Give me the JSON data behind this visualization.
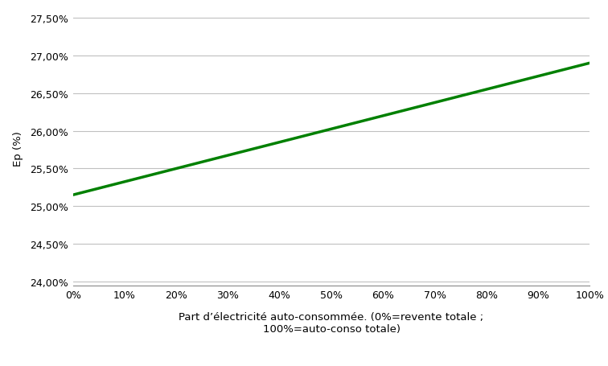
{
  "x_values": [
    0.0,
    1.0
  ],
  "y_values": [
    0.2515,
    0.269
  ],
  "line_color": "#008000",
  "line_width": 2.5,
  "ylabel": "Ep (%)",
  "xlabel": "Part d’électricité auto-consommée. (0%=revente totale ;\n100%=auto-conso totale)",
  "xlim": [
    0.0,
    1.0
  ],
  "ylim": [
    0.2395,
    0.276
  ],
  "ytick_values": [
    0.24,
    0.245,
    0.25,
    0.255,
    0.26,
    0.265,
    0.27,
    0.275
  ],
  "xtick_values": [
    0,
    0.1,
    0.2,
    0.3,
    0.4,
    0.5,
    0.6,
    0.7,
    0.8,
    0.9,
    1.0
  ],
  "background_color": "#ffffff",
  "grid_color": "#c0c0c0",
  "font_size_axis_label": 9.5,
  "font_size_tick": 9
}
